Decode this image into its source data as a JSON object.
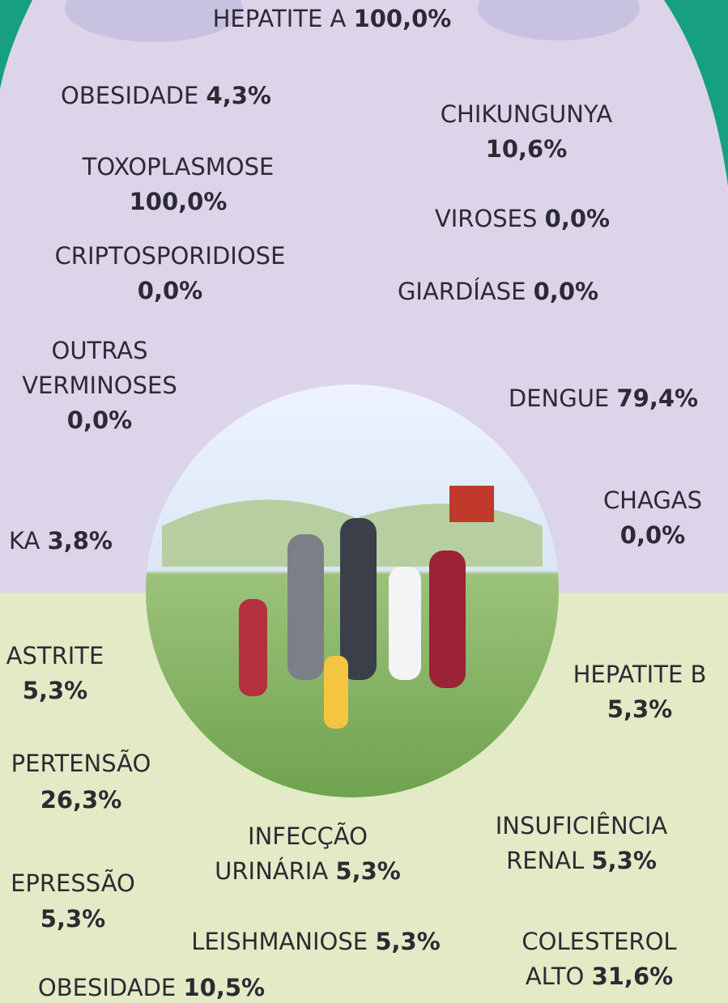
{
  "items": [
    {
      "name": [
        "HEPATITE A"
      ],
      "value": "100,0%"
    },
    {
      "name": [
        "OBESIDADE"
      ],
      "value": "4,3%"
    },
    {
      "name": [
        "CHIKUNGUNYA"
      ],
      "value": "10,6%"
    },
    {
      "name": [
        "TOXOPLASMOSE"
      ],
      "value": "100,0%"
    },
    {
      "name": [
        "VIROSES"
      ],
      "value": "0,0%"
    },
    {
      "name": [
        "CRIPTOSPORIDIOSE"
      ],
      "value": "0,0%"
    },
    {
      "name": [
        "GIARDÍASE"
      ],
      "value": "0,0%"
    },
    {
      "name": [
        "OUTRAS",
        "VERMINOSES"
      ],
      "value": "0,0%"
    },
    {
      "name": [
        "DENGUE"
      ],
      "value": "79,4%"
    },
    {
      "name": [
        "CHAGAS"
      ],
      "value": "0,0%"
    },
    {
      "name": [
        "KA"
      ],
      "value": "3,8%"
    },
    {
      "name": [
        "ASTRITE"
      ],
      "value": "5,3%"
    },
    {
      "name": [
        "HEPATITE B"
      ],
      "value": "5,3%"
    },
    {
      "name": [
        "PERTENSÃO"
      ],
      "value": "26,3%"
    },
    {
      "name": [
        "INFECÇÃO",
        "URINÁRIA"
      ],
      "value": "5,3%"
    },
    {
      "name": [
        "INSUFICIÊNCIA",
        "RENAL"
      ],
      "value": "5,3%"
    },
    {
      "name": [
        "EPRESSÃO"
      ],
      "value": "5,3%"
    },
    {
      "name": [
        "LEISHMANIOSE"
      ],
      "value": "5,3%"
    },
    {
      "name": [
        "COLESTEROL",
        "ALTO"
      ],
      "value": "31,6%"
    },
    {
      "name": [
        "OBESIDADE"
      ],
      "value": "10,5%"
    }
  ]
}
